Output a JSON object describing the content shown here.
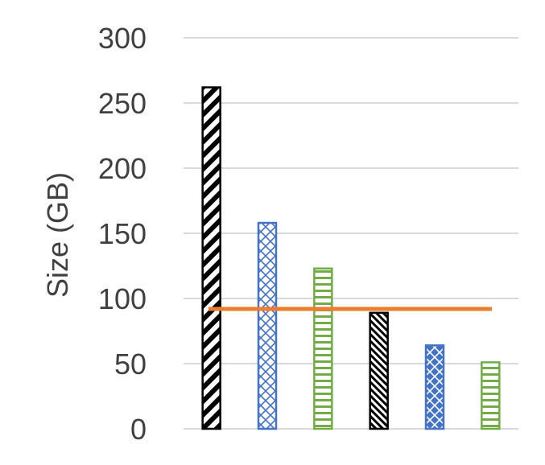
{
  "chart_data": {
    "type": "bar",
    "title": "",
    "xlabel": "",
    "ylabel": "Size (GB)",
    "ylim": [
      0,
      300
    ],
    "yticks": [
      0,
      50,
      100,
      150,
      200,
      250,
      300
    ],
    "grid": true,
    "legend": "none",
    "bars": [
      {
        "value": 262,
        "color": "#000000",
        "pattern": "wide-diagonal-hatch"
      },
      {
        "value": 158,
        "color": "#4472C4",
        "pattern": "diamond-hatch"
      },
      {
        "value": 123,
        "color": "#70AD47",
        "pattern": "horizontal-stripes"
      },
      {
        "value": 89,
        "color": "#000000",
        "pattern": "narrow-diagonal-hatch"
      },
      {
        "value": 64,
        "color": "#4472C4",
        "pattern": "diamond-hatch-filled"
      },
      {
        "value": 51,
        "color": "#70AD47",
        "pattern": "horizontal-stripes"
      }
    ],
    "reference_line": {
      "value": 92,
      "color": "#ED7D31"
    }
  }
}
